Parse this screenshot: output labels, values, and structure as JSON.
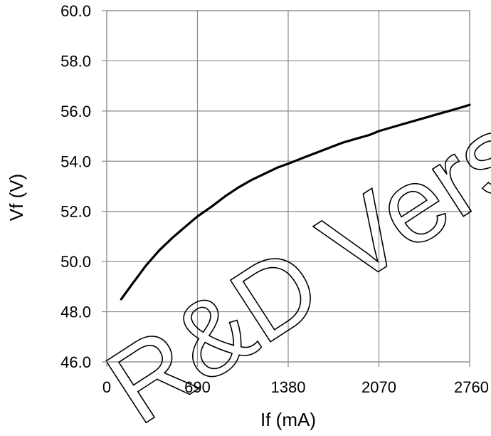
{
  "chart_data": {
    "type": "line",
    "xlabel": "If (mA)",
    "ylabel": "Vf (V)",
    "xlim": [
      0,
      2760
    ],
    "ylim": [
      46.0,
      60.0
    ],
    "x_ticks": [
      "0",
      "690",
      "1380",
      "2070",
      "2760"
    ],
    "x_tick_values": [
      0,
      690,
      1380,
      2070,
      2760
    ],
    "y_ticks": [
      "60.0",
      "58.0",
      "56.0",
      "54.0",
      "52.0",
      "50.0",
      "48.0",
      "46.0"
    ],
    "y_tick_values": [
      60,
      58,
      56,
      54,
      52,
      50,
      48,
      46
    ],
    "grid": true,
    "series": [
      {
        "color": "#000000",
        "x": [
          110,
          200,
          300,
          400,
          500,
          600,
          690,
          800,
          900,
          1000,
          1100,
          1200,
          1300,
          1380,
          1500,
          1600,
          1700,
          1800,
          1900,
          2000,
          2070,
          2200,
          2300,
          2400,
          2500,
          2600,
          2700,
          2760
        ],
        "y": [
          48.5,
          49.15,
          49.85,
          50.45,
          50.95,
          51.4,
          51.8,
          52.2,
          52.6,
          52.95,
          53.25,
          53.5,
          53.75,
          53.9,
          54.15,
          54.35,
          54.55,
          54.75,
          54.9,
          55.05,
          55.2,
          55.4,
          55.55,
          55.7,
          55.85,
          56.0,
          56.15,
          56.25
        ]
      }
    ]
  },
  "watermark": {
    "text": "R&D Vers",
    "color": "#000000"
  }
}
